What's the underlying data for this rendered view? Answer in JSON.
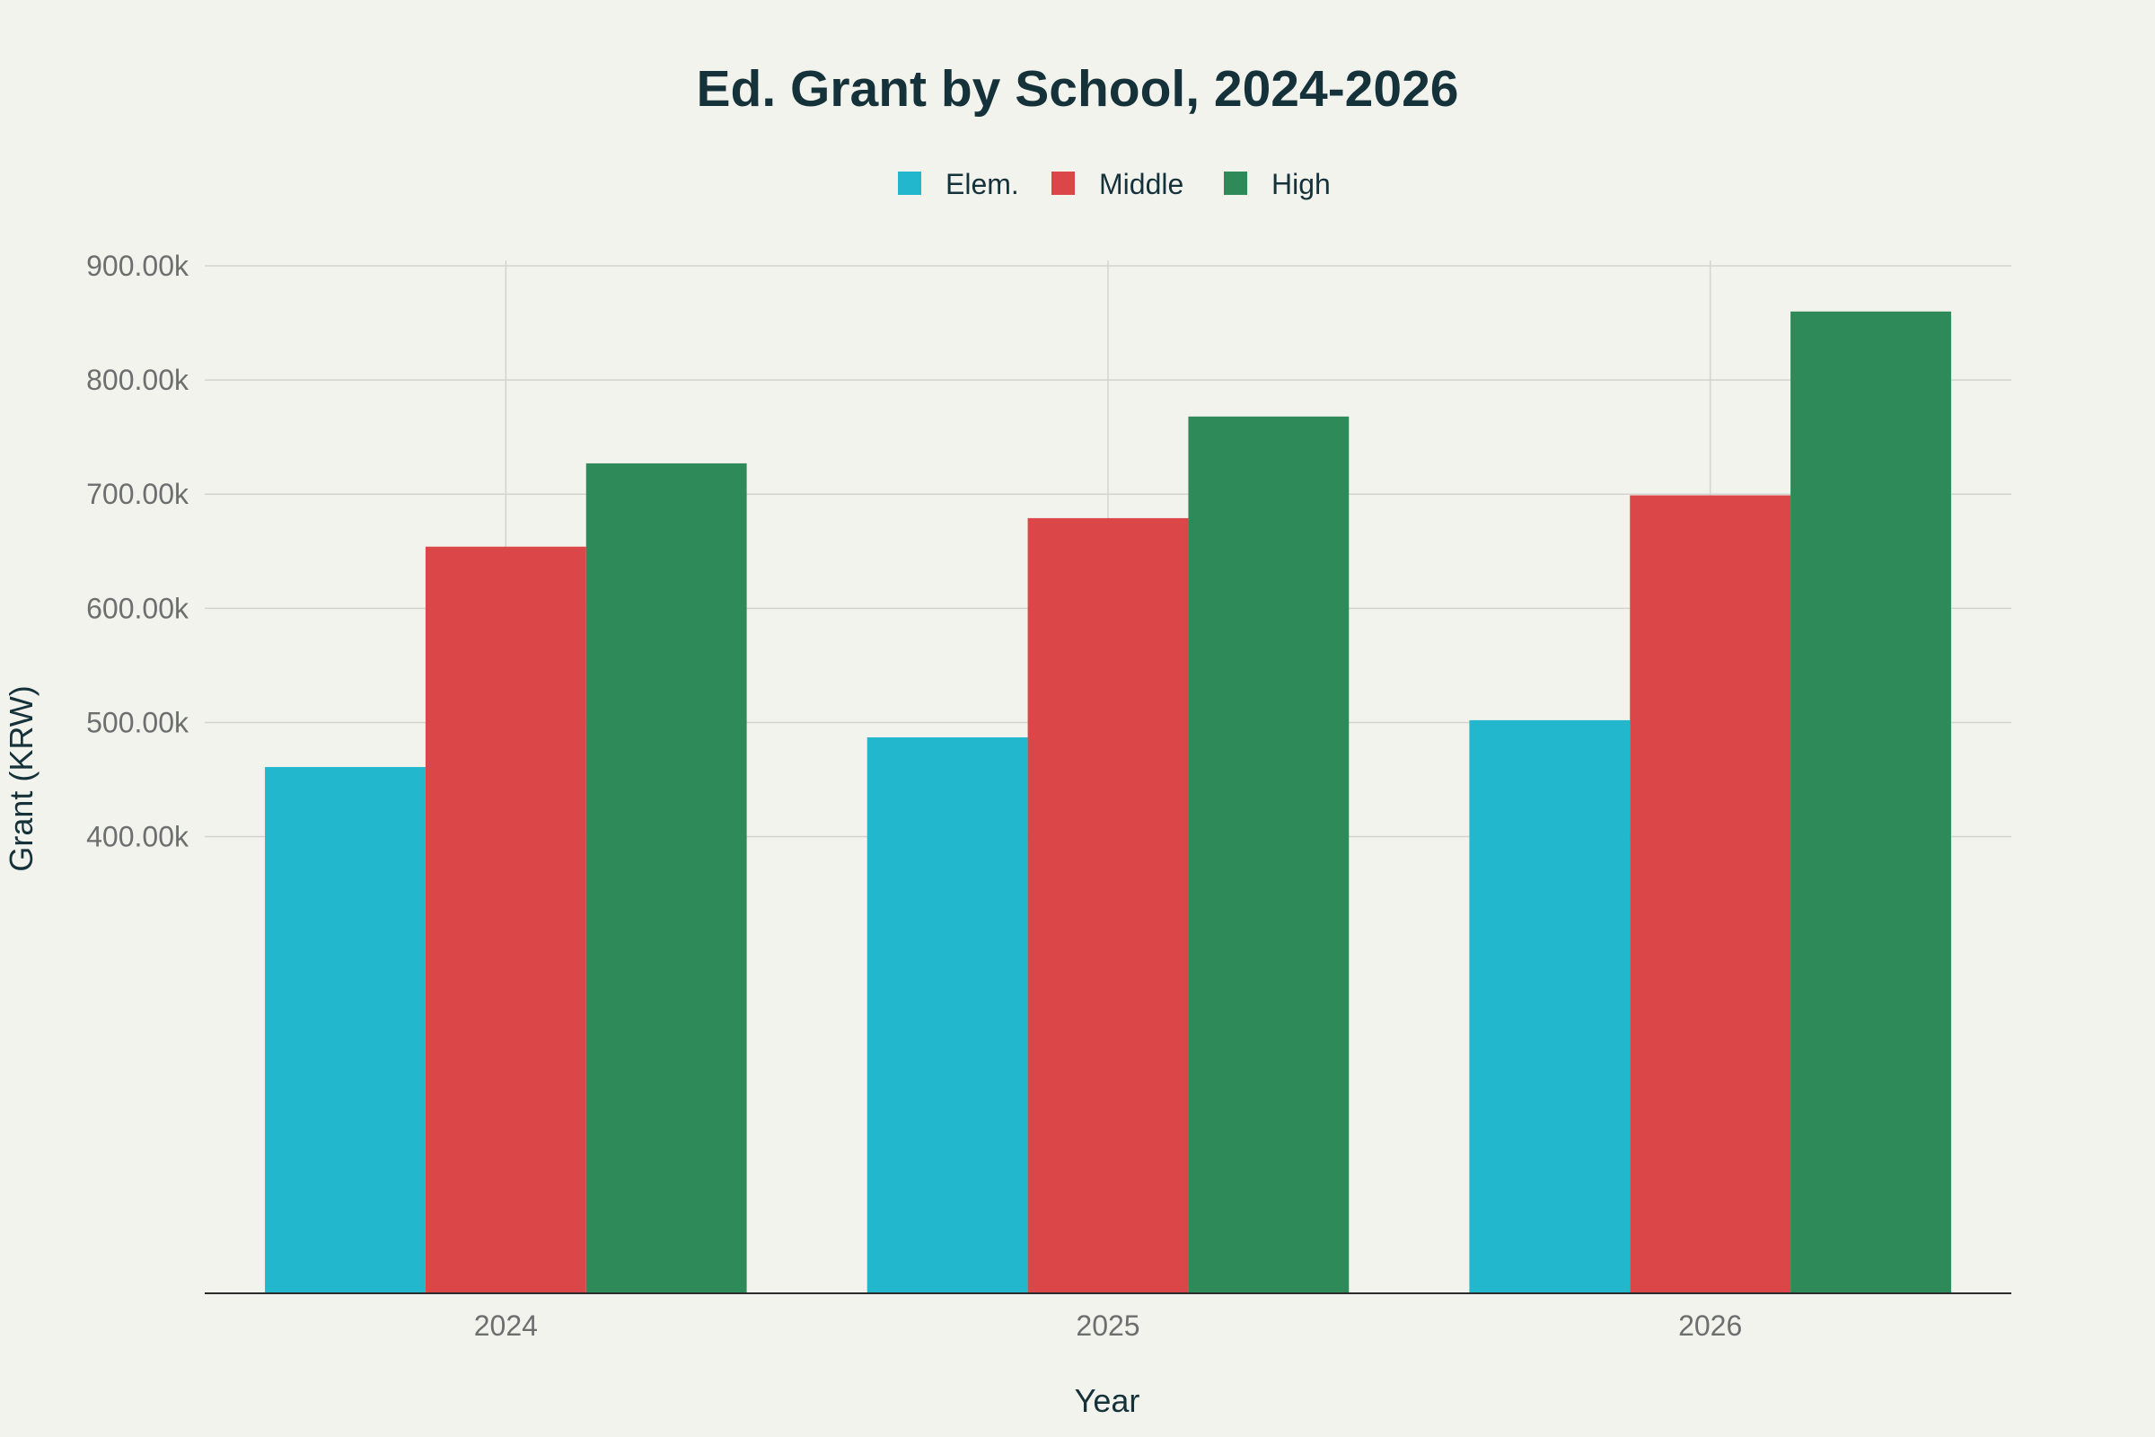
{
  "chart_data": {
    "type": "bar",
    "title": "Ed. Grant by School, 2024-2026",
    "xlabel": "Year",
    "ylabel": "Grant (KRW)",
    "categories": [
      "2024",
      "2025",
      "2026"
    ],
    "series": [
      {
        "name": "Elem.",
        "color": "#22b7cd",
        "values": [
          461000,
          487000,
          502000
        ]
      },
      {
        "name": "Middle",
        "color": "#db4748",
        "values": [
          654000,
          679000,
          699000
        ]
      },
      {
        "name": "High",
        "color": "#2e8a58",
        "values": [
          727000,
          768000,
          860000
        ]
      }
    ],
    "ylim": [
      0,
      900000
    ],
    "yticks": [
      400000,
      500000,
      600000,
      700000,
      800000,
      900000
    ],
    "ytick_labels": [
      "400.00k",
      "500.00k",
      "600.00k",
      "700.00k",
      "800.00k",
      "900.00k"
    ],
    "grid": true,
    "legend_position": "top-center"
  }
}
